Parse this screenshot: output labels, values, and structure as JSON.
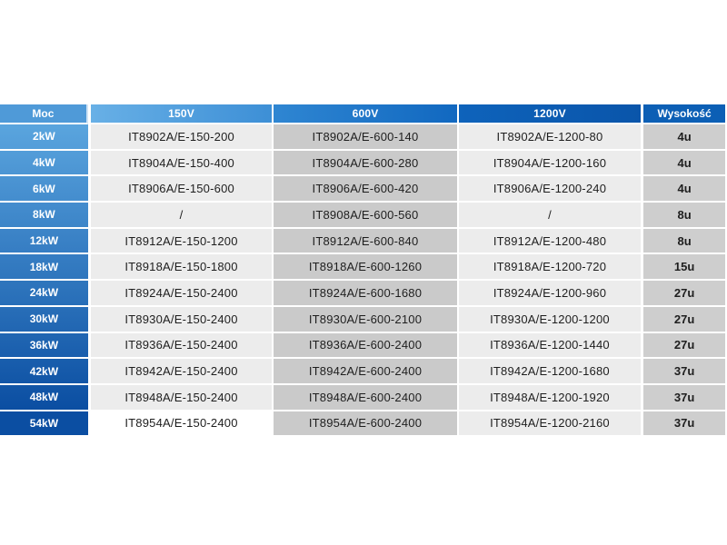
{
  "table": {
    "headers": [
      "Moc",
      "150V",
      "600V",
      "1200V",
      "Wysokość"
    ],
    "rows": [
      [
        "2kW",
        "IT8902A/E-150-200",
        "IT8902A/E-600-140",
        "IT8902A/E-1200-80",
        "4u"
      ],
      [
        "4kW",
        "IT8904A/E-150-400",
        "IT8904A/E-600-280",
        "IT8904A/E-1200-160",
        "4u"
      ],
      [
        "6kW",
        "IT8906A/E-150-600",
        "IT8906A/E-600-420",
        "IT8906A/E-1200-240",
        "4u"
      ],
      [
        "8kW",
        "/",
        "IT8908A/E-600-560",
        "/",
        "8u"
      ],
      [
        "12kW",
        "IT8912A/E-150-1200",
        "IT8912A/E-600-840",
        "IT8912A/E-1200-480",
        "8u"
      ],
      [
        "18kW",
        "IT8918A/E-150-1800",
        "IT8918A/E-600-1260",
        "IT8918A/E-1200-720",
        "15u"
      ],
      [
        "24kW",
        "IT8924A/E-150-2400",
        "IT8924A/E-600-1680",
        "IT8924A/E-1200-960",
        "27u"
      ],
      [
        "30kW",
        "IT8930A/E-150-2400",
        "IT8930A/E-600-2100",
        "IT8930A/E-1200-1200",
        "27u"
      ],
      [
        "36kW",
        "IT8936A/E-150-2400",
        "IT8936A/E-600-2400",
        "IT8936A/E-1200-1440",
        "27u"
      ],
      [
        "42kW",
        "IT8942A/E-150-2400",
        "IT8942A/E-600-2400",
        "IT8942A/E-1200-1680",
        "37u"
      ],
      [
        "48kW",
        "IT8948A/E-150-2400",
        "IT8948A/E-600-2400",
        "IT8948A/E-1200-1920",
        "37u"
      ],
      [
        "54kW",
        "IT8954A/E-150-2400",
        "IT8954A/E-600-2400",
        "IT8954A/E-1200-2160",
        "37u"
      ]
    ]
  },
  "colors": {
    "header_blue_light": "#68b0e6",
    "header_blue_dark": "#0a55aa",
    "moc_top": "#5aa5de",
    "moc_bottom": "#0b4ea2"
  }
}
